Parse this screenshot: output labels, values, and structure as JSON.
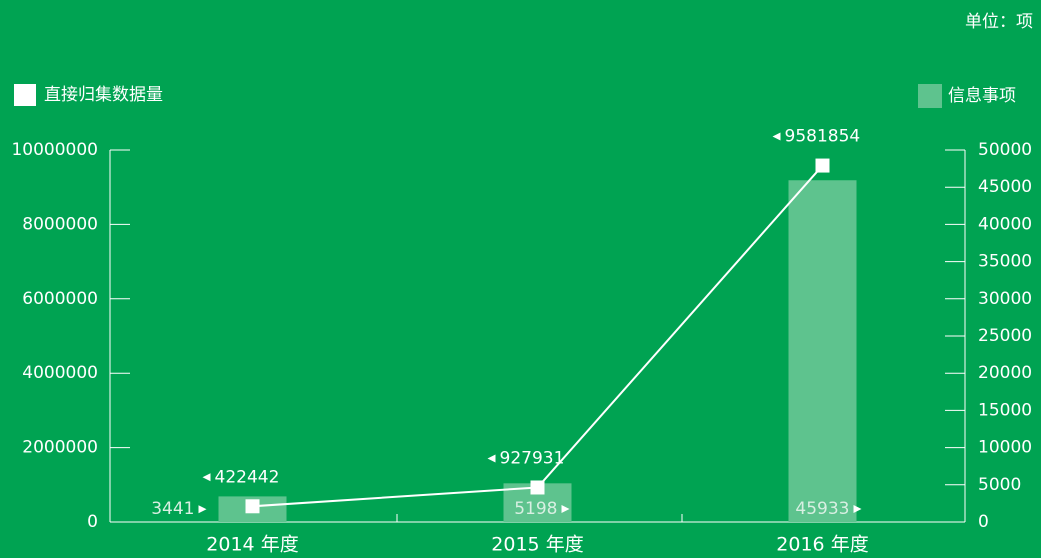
{
  "chart_data": {
    "type": "combo",
    "unit_label": "单位：项",
    "categories": [
      "2014 年度",
      "2015 年度",
      "2016 年度"
    ],
    "series": [
      {
        "name": "直接归集数据量",
        "type": "line",
        "color": "#ffffff",
        "axis": "y",
        "values": [
          422442,
          927931,
          9581854
        ]
      },
      {
        "name": "信息事项",
        "type": "bar",
        "color": "#5ec38e",
        "axis": "y2",
        "values": [
          3441,
          5198,
          45933
        ]
      }
    ],
    "ylim": [
      0,
      10000000
    ],
    "yticks": [
      0,
      2000000,
      4000000,
      6000000,
      8000000,
      10000000
    ],
    "y2lim": [
      0,
      50000
    ],
    "y2ticks": [
      0,
      5000,
      10000,
      15000,
      20000,
      25000,
      30000,
      35000,
      40000,
      45000,
      50000
    ],
    "grid": false
  }
}
